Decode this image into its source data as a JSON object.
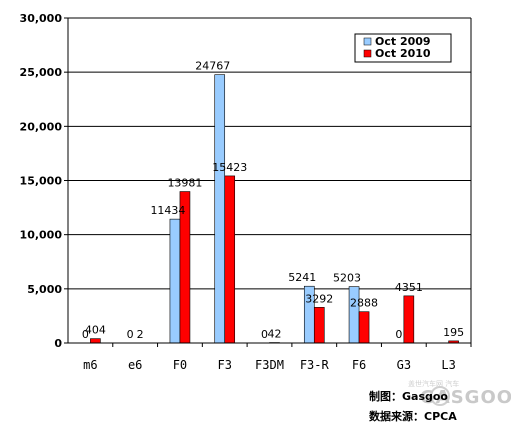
{
  "chart_data": {
    "type": "bar",
    "categories": [
      "m6",
      "e6",
      "F0",
      "F3",
      "F3DM",
      "F3-R",
      "F6",
      "G3",
      "L3"
    ],
    "series": [
      {
        "name": "Oct 2009",
        "color": "#99ccff",
        "values": [
          0,
          0,
          11434,
          24767,
          0,
          5241,
          5203,
          0,
          null
        ]
      },
      {
        "name": "Oct 2010",
        "color": "#ff0000",
        "values": [
          404,
          2,
          13981,
          15423,
          42,
          3292,
          2888,
          4351,
          195
        ]
      }
    ],
    "data_labels": {
      "Oct 2009": [
        "0",
        "0",
        "11434",
        "24767",
        "0",
        "5241",
        "5203",
        "0",
        ""
      ],
      "Oct 2010": [
        "404",
        "2",
        "13981",
        "15423",
        "42",
        "3292",
        "2888",
        "4351",
        "195"
      ]
    },
    "y_ticks": [
      "0",
      "5,000",
      "10,000",
      "15,000",
      "20,000",
      "25,000",
      "30,000"
    ],
    "ylim": [
      0,
      30000
    ],
    "grid": true,
    "legend_position": "top-right"
  },
  "credits": {
    "maker": "制图：Gasgoo",
    "source": "数据来源：CPCA"
  },
  "watermark": {
    "brand": "GASGOO",
    "tagline": "盖世汽车网 汽车"
  }
}
